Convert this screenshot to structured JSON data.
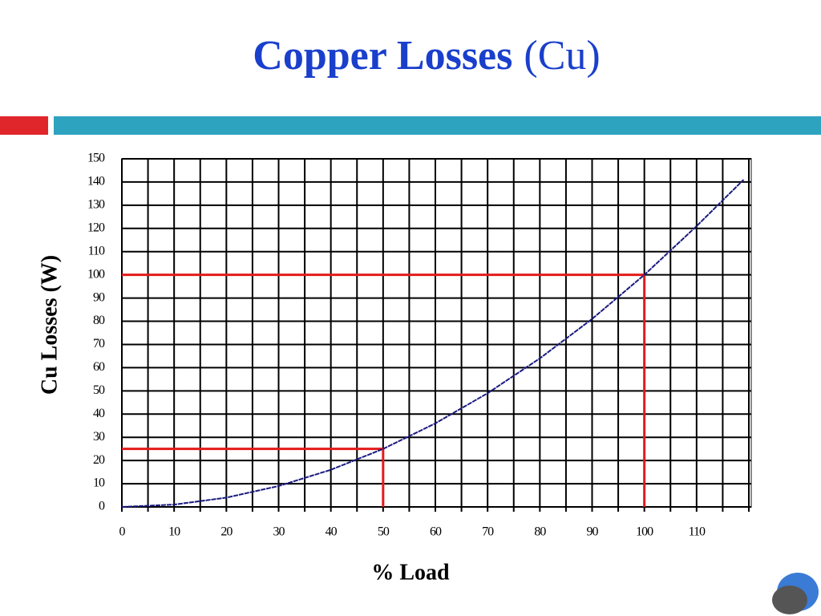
{
  "chart_data": {
    "type": "line",
    "title": "Copper Losses",
    "title_suffix": "(Cu)",
    "xlabel": "% Load",
    "ylabel": "Cu Losses (W)",
    "x": [
      0,
      10,
      20,
      30,
      40,
      50,
      60,
      70,
      80,
      90,
      100,
      110,
      119
    ],
    "series": [
      {
        "name": "Cu Losses",
        "color": "#1a1a80",
        "values": [
          0,
          1,
          4,
          9,
          16,
          25,
          36,
          49,
          64,
          81,
          100,
          121,
          141
        ]
      }
    ],
    "xlim": [
      0,
      120
    ],
    "ylim": [
      0,
      150
    ],
    "xticks": [
      0,
      10,
      20,
      30,
      40,
      50,
      60,
      70,
      80,
      90,
      100,
      110
    ],
    "xminor_ticks": [
      5,
      15,
      25,
      35,
      45,
      55,
      65,
      75,
      85,
      95,
      105,
      115,
      120
    ],
    "yticks": [
      0,
      10,
      20,
      30,
      40,
      50,
      60,
      70,
      80,
      90,
      100,
      110,
      120,
      130,
      140,
      150
    ],
    "grid": true,
    "reference_lines": [
      {
        "x": 50,
        "y": 25,
        "color": "#e31b1b"
      },
      {
        "x": 100,
        "y": 100,
        "color": "#e31b1b"
      }
    ]
  }
}
